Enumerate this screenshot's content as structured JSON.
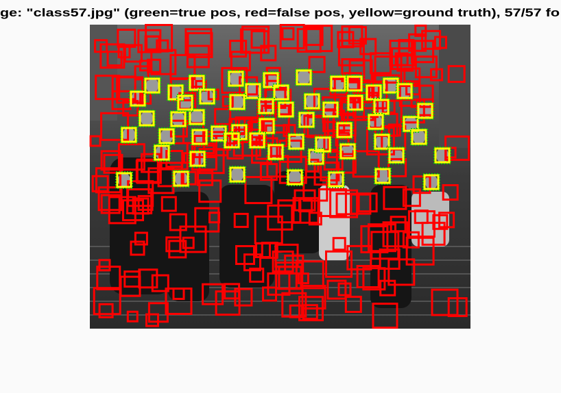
{
  "figure": {
    "title": "ge: \"class57.jpg\" (green=true pos, red=false pos, yellow=ground truth), 57/57 fo"
  }
}
